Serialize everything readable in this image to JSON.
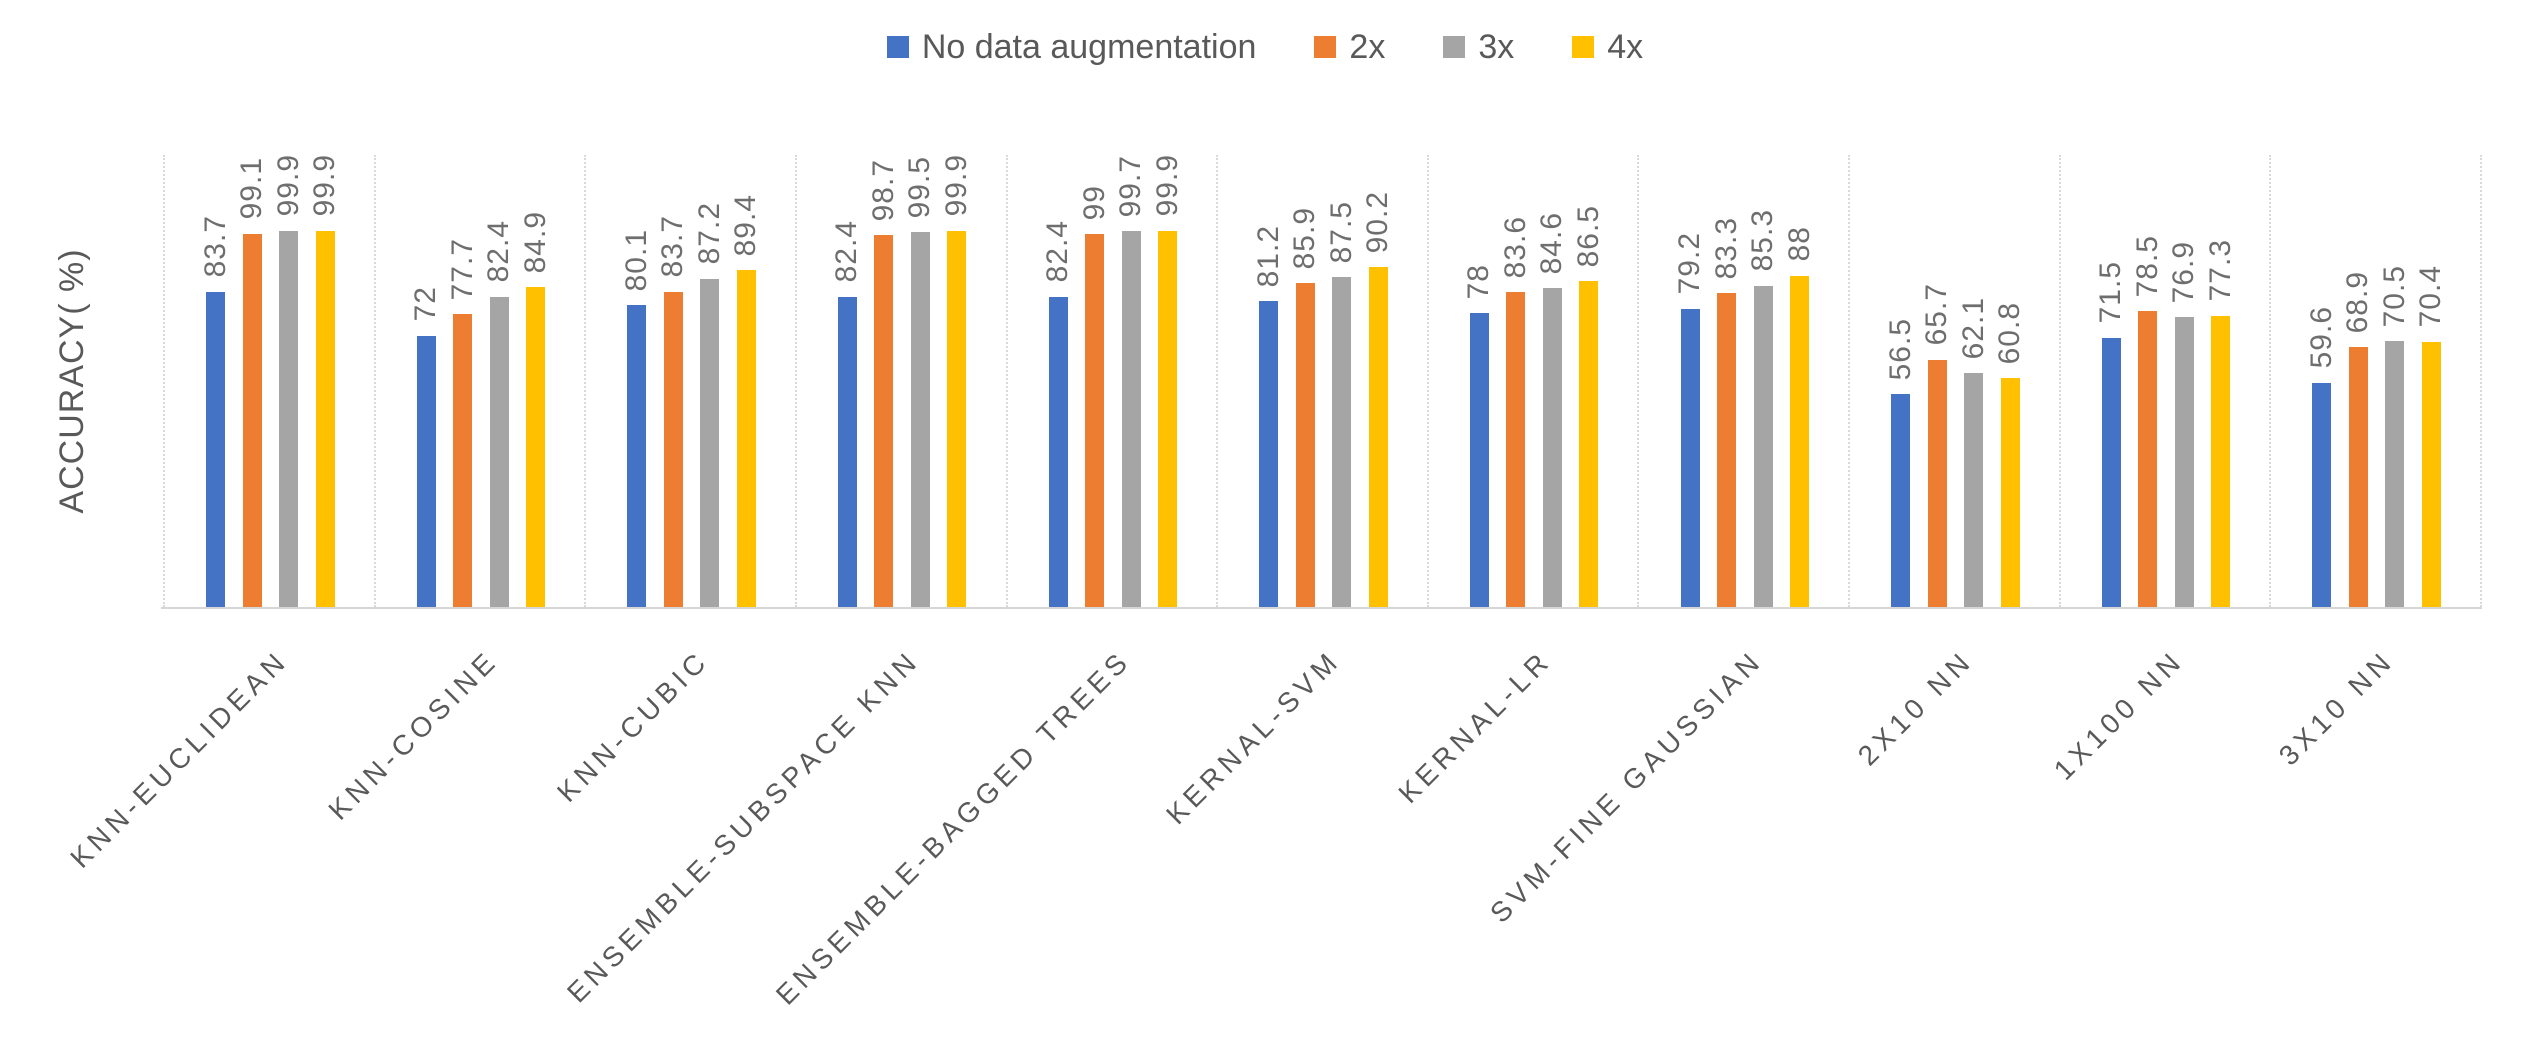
{
  "chart_data": {
    "type": "bar",
    "title": "",
    "ylabel": "ACCURACY( %)",
    "xlabel": "",
    "ylim": [
      0,
      120
    ],
    "gridlines": "vertical category separators only, light gray dotted",
    "legend_position": "top-center",
    "value_labels": "above bars, rotated 90deg",
    "category_label_rotation": -45,
    "categories": [
      "KNN-EUCLIDEAN",
      "KNN-COSINE",
      "KNN-CUBIC",
      "ENSEMBLE-SUBSPACE KNN",
      "ENSEMBLE-BAGGED TREES",
      "KERNAL-SVM",
      "KERNAL-LR",
      "SVM-FINE GAUSSIAN",
      "2X10 NN",
      "1X100 NN",
      "3X10 NN"
    ],
    "series": [
      {
        "name": "No data augmentation",
        "color": "#4472C4",
        "values": [
          83.7,
          72,
          80.1,
          82.4,
          82.4,
          81.2,
          78,
          79.2,
          56.5,
          71.5,
          59.6
        ]
      },
      {
        "name": "2x",
        "color": "#ED7D31",
        "values": [
          99.1,
          77.7,
          83.7,
          98.7,
          99,
          85.9,
          83.6,
          83.3,
          65.7,
          78.5,
          68.9
        ]
      },
      {
        "name": "3x",
        "color": "#A5A5A5",
        "values": [
          99.9,
          82.4,
          87.2,
          99.5,
          99.7,
          87.5,
          84.6,
          85.3,
          62.1,
          76.9,
          70.5
        ]
      },
      {
        "name": "4x",
        "color": "#FFC000",
        "values": [
          99.9,
          84.9,
          89.4,
          99.9,
          99.9,
          90.2,
          86.5,
          88,
          60.8,
          77.3,
          70.4
        ]
      }
    ],
    "colors": {
      "axis_line": "#d6d6d6",
      "separator_line": "#d9d9d9",
      "label_text": "#6e6e6e",
      "axis_text": "#595959"
    }
  }
}
